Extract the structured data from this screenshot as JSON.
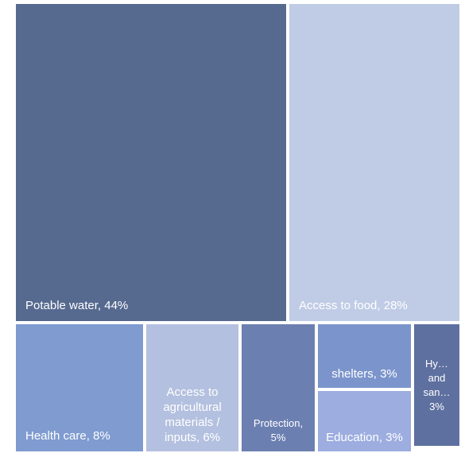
{
  "chart_data": {
    "type": "treemap",
    "title": "",
    "colors": {
      "potable_water": "#56698f",
      "access_to_food": "#c0cce6",
      "health_care": "#7f9bd0",
      "agricultural": "#b3c0df",
      "protection": "#6c7fb1",
      "shelters": "#7b94cb",
      "education": "#9dade0",
      "hygiene": "#5e709f"
    },
    "items": [
      {
        "key": "potable_water",
        "name": "Potable water",
        "value": 44,
        "label": "Potable water, 44%"
      },
      {
        "key": "access_to_food",
        "name": "Access to food",
        "value": 28,
        "label": "Access to food, 28%"
      },
      {
        "key": "health_care",
        "name": "Health care",
        "value": 8,
        "label": "Health care, 8%"
      },
      {
        "key": "agricultural",
        "name": "Access to agricultural materials / inputs",
        "value": 6,
        "label": "Access to agricultural materials / inputs, 6%"
      },
      {
        "key": "protection",
        "name": "Protection",
        "value": 5,
        "label": "Protection, 5%"
      },
      {
        "key": "shelters",
        "name": "shelters",
        "value": 3,
        "label": "shelters, 3%"
      },
      {
        "key": "education",
        "name": "Education",
        "value": 3,
        "label": "Education, 3%"
      },
      {
        "key": "hygiene",
        "name": "Hy… and san…",
        "value": 3,
        "label": "Hy… and san… 3%"
      }
    ]
  }
}
